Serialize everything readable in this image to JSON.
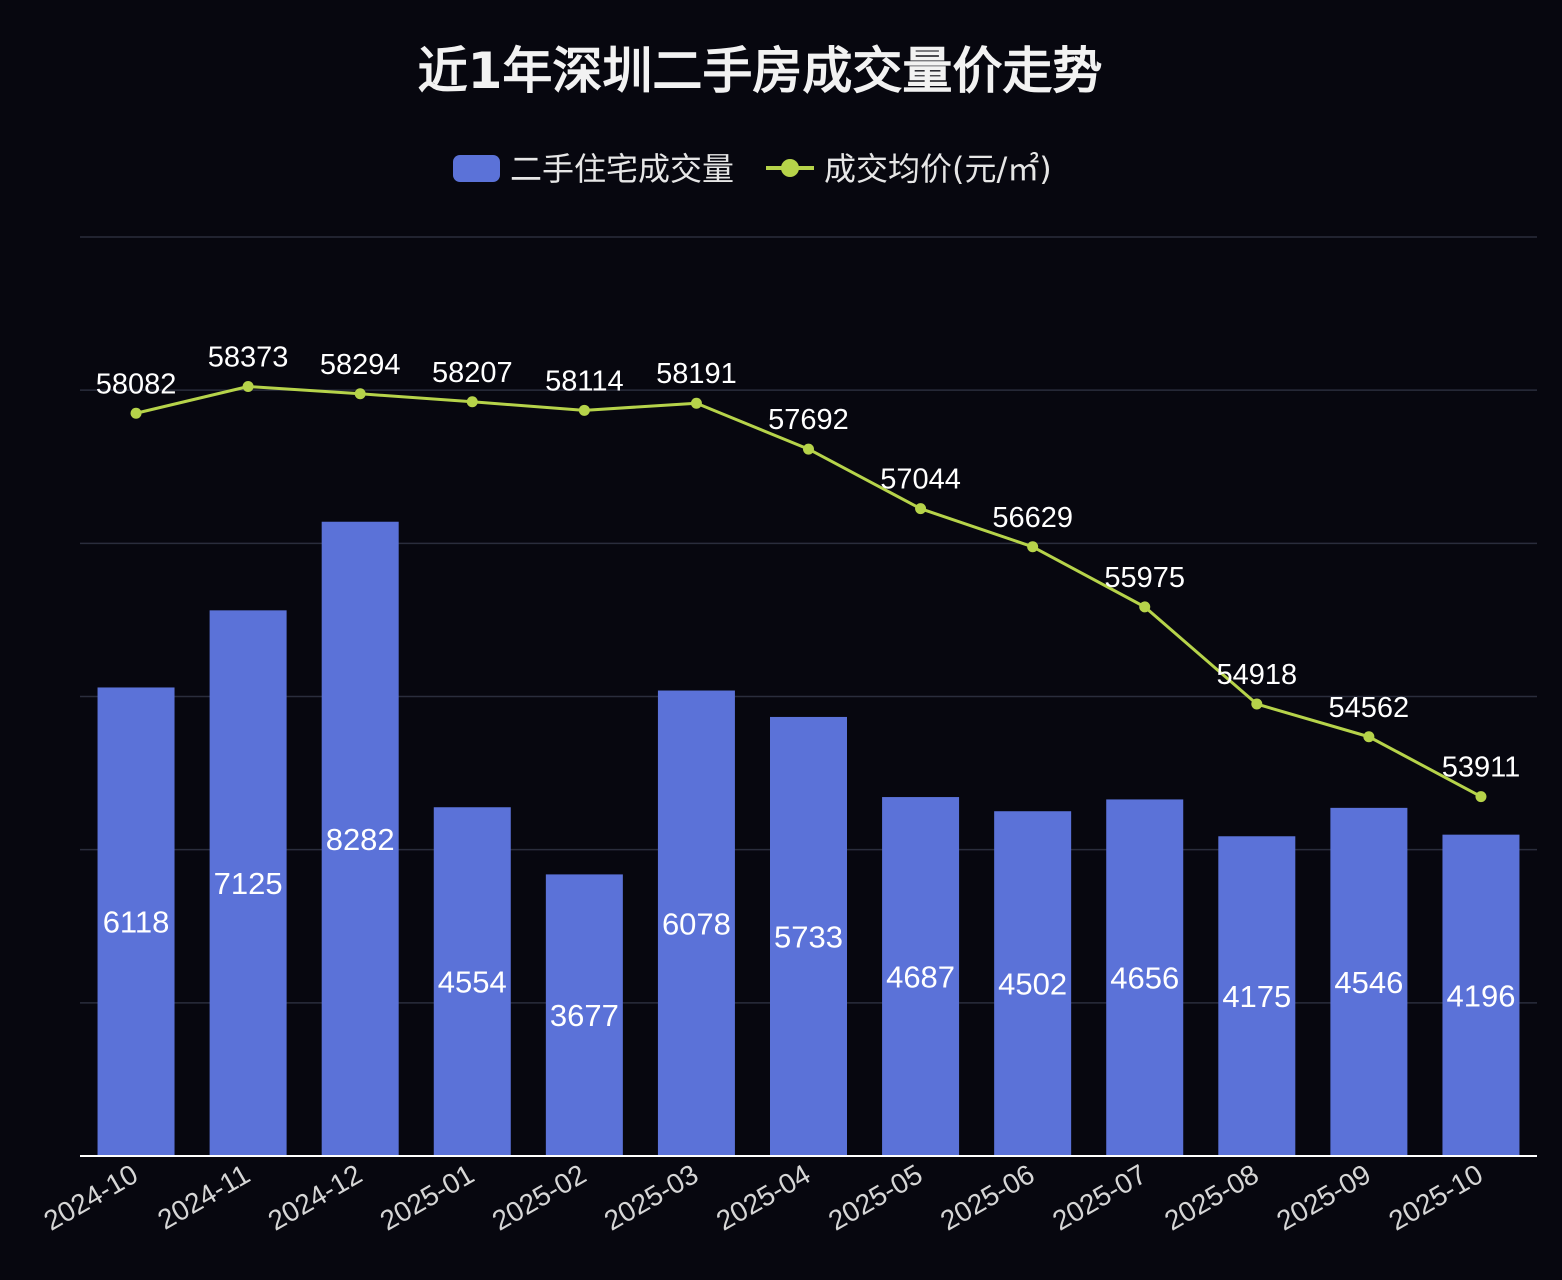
{
  "chart_data": {
    "type": "bar+line",
    "title": "近1年深圳二手房成交量价走势",
    "categories": [
      "2024-10",
      "2024-11",
      "2024-12",
      "2025-01",
      "2025-02",
      "2025-03",
      "2025-04",
      "2025-05",
      "2025-06",
      "2025-07",
      "2025-08",
      "2025-09",
      "2025-10"
    ],
    "series": [
      {
        "name": "二手住宅成交量",
        "type": "bar",
        "color": "#5b72d8",
        "values": [
          6118,
          7125,
          8282,
          4554,
          3677,
          6078,
          5733,
          4687,
          4502,
          4656,
          4175,
          4546,
          4196
        ]
      },
      {
        "name": "成交均价(元/㎡)",
        "type": "line",
        "color": "#b6d34a",
        "values": [
          58082,
          58373,
          58294,
          58207,
          58114,
          58191,
          57692,
          57044,
          56629,
          55975,
          54918,
          54562,
          53911
        ]
      }
    ],
    "bar_axis_range": [
      0,
      12000
    ],
    "line_axis_range": [
      50000,
      60000
    ],
    "gridlines": true,
    "legend_position": "top-center",
    "axis_color": "#ffffff",
    "grid_color": "#2a2d3c",
    "background_color": "#07070f"
  }
}
